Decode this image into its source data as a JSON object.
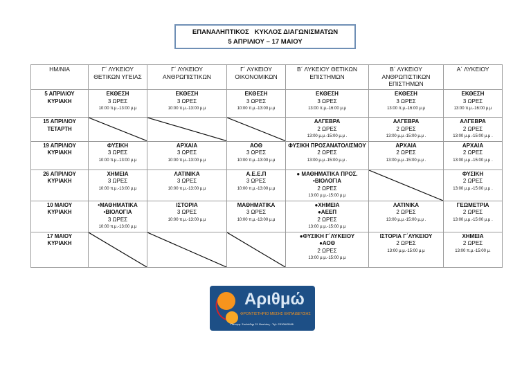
{
  "title": {
    "line1": "ΕΠΑΝΑΛΗΠΤΙΚΟΣ   ΚΥΚΛΟΣ ΔΙΑΓΩΝΙΣΜΑΤΩΝ",
    "line2": "5 ΑΠΡΙΛΙΟΥ – 17 ΜΑΙΟΥ"
  },
  "headers": [
    "ΗΜ/ΝΙΑ",
    "Γ΄ ΛΥΚΕΙΟΥ ΘΕΤΙΚΩΝ ΥΓΕΙΑΣ",
    "Γ΄ ΛΥΚΕΙΟΥ ΑΝΘΡΩΠΙΣΤΙΚΩΝ",
    "Γ΄ ΛΥΚΕΙΟΥ ΟΙΚΟΝΟΜΙΚΩΝ",
    "Β΄ ΛΥΚΕΙΟΥ ΘΕΤΙΚΩΝ ΕΠΙΣΤΗΜΩΝ",
    "Β΄ ΛΥΚΕΙΟΥ ΑΝΘΡΩΠΙΣΤΙΚΩΝ ΕΠΙΣΤΗΜΩΝ",
    "Α΄ ΛΥΚΕΙΟΥ"
  ],
  "rows": [
    {
      "date": "5 ΑΠΡΙΛΙΟΥ",
      "day": "ΚΥΡΙΑΚΗ",
      "cells": [
        {
          "subj": "ΕΚΘΕΣΗ",
          "hours": "3 ΩΡΕΣ",
          "time": "10:00 π.μ.-13:00 μ.μ"
        },
        {
          "subj": "ΕΚΘΕΣΗ",
          "hours": "3 ΩΡΕΣ",
          "time": "10:00 π.μ.-13:00 μ.μ"
        },
        {
          "subj": "ΕΚΘΕΣΗ",
          "hours": "3 ΩΡΕΣ",
          "time": "10:00 π.μ.-13:00 μ.μ"
        },
        {
          "subj": "ΕΚΘΕΣΗ",
          "hours": "3 ΩΡΕΣ",
          "time": "13:00 π.μ.-16:00 μ.μ"
        },
        {
          "subj": "ΕΚΘΕΣΗ",
          "hours": "3 ΩΡΕΣ",
          "time": "13:00 π.μ.-16:00 μ.μ"
        },
        {
          "subj": "ΕΚΘΕΣΗ",
          "hours": "3 ΩΡΕΣ",
          "time": "13:00 π.μ.-16:00 μ.μ"
        }
      ]
    },
    {
      "date": "15 ΑΠΡΙΛΙΟΥ",
      "day": "ΤΕΤΑΡΤΗ",
      "cells": [
        null,
        null,
        null,
        {
          "subj": "ΑΛΓΕΒΡΑ",
          "hours": "2 ΩΡΕΣ",
          "time": "13:00 μ.μ.-15:00 μ.μ ."
        },
        {
          "subj": "ΑΛΓΕΒΡΑ",
          "hours": "2 ΩΡΕΣ",
          "time": "13:00 μ.μ.-15:00 μ.μ ."
        },
        {
          "subj": "ΑΛΓΕΒΡΑ",
          "hours": "2 ΩΡΕΣ",
          "time": "13:00 μ.μ.-15:00 μ.μ ."
        }
      ]
    },
    {
      "date": "19 ΑΠΡΙΛΙΟΥ",
      "day": "ΚΥΡΙΑΚΗ",
      "cells": [
        {
          "subj": "ΦΥΣΙΚΗ",
          "hours": "3 ΩΡΕΣ",
          "time": "10:00 π.μ.-13:00 μ.μ"
        },
        {
          "subj": "ΑΡΧΑΙΑ",
          "hours": "3 ΩΡΕΣ",
          "time": "10:00 π.μ.-13:00 μ.μ"
        },
        {
          "subj": "ΑΟΘ",
          "hours": "3 ΩΡΕΣ",
          "time": "10:00 π.μ.-13:00 μ.μ"
        },
        {
          "subj": "ΦΥΣΙΚΗ ΠΡΟΣΑΝΑΤΟΛΙΣΜΟΥ",
          "hours": "2 ΩΡΕΣ",
          "time": "13:00 μ.μ.-15:00 μ.μ ."
        },
        {
          "subj": "ΑΡΧΑΙΑ",
          "hours": "2 ΩΡΕΣ",
          "time": "13:00 μ.μ.-15:00 μ.μ ."
        },
        {
          "subj": "ΑΡΧΑΙΑ",
          "hours": "2 ΩΡΕΣ",
          "time": "13:00 μ.μ.-15:00 μ.μ ."
        }
      ]
    },
    {
      "date": "26 ΑΠΡΙΛΙΟΥ",
      "day": "ΚΥΡΙΑΚΗ",
      "cells": [
        {
          "subj": "ΧΗΜΕΙΑ",
          "hours": "3 ΩΡΕΣ",
          "time": "10:00 π.μ.-13:00 μ.μ"
        },
        {
          "subj": "ΛΑΤΙΝΙΚΑ",
          "hours": "3 ΩΡΕΣ",
          "time": "10:00 π.μ.-13:00 μ.μ"
        },
        {
          "subj": "Α.Ε.Ε.Π",
          "hours": "3 ΩΡΕΣ",
          "time": "10:00 π.μ.-13:00 μ.μ"
        },
        {
          "subj": "● ΜΑΘΗΜΑΤΙΚΑ ΠΡΟΣ.",
          "subj2": "•ΒΙΟΛΟΓΙΑ",
          "hours": "2 ΩΡΕΣ",
          "time": "13:00 μ.μ.-15:00 μ.μ"
        },
        null,
        {
          "subj": "ΦΥΣΙΚΗ",
          "hours": "2 ΩΡΕΣ",
          "time": "13:00 μ.μ.-15:00 μ.μ ."
        }
      ]
    },
    {
      "date": "10 ΜΑΙΟΥ",
      "day": "ΚΥΡΙΑΚΗ",
      "cells": [
        {
          "subj": "•ΜΑΘΗΜΑΤΙΚΑ",
          "subj2": "•ΒΙΟΛΟΓΙΑ",
          "hours": "3 ΩΡΕΣ",
          "time": "10:00 π.μ.-13:00 μ.μ"
        },
        {
          "subj": "ΙΣΤΟΡΙΑ",
          "hours": "3 ΩΡΕΣ",
          "time": "10:00 π.μ.-13:00 μ.μ"
        },
        {
          "subj": "ΜΑΘΗΜΑΤΙΚΑ",
          "hours": "3 ΩΡΕΣ",
          "time": "10:00 π.μ.-13:00 μ.μ"
        },
        {
          "subj": "●ΧΗΜΕΙΑ",
          "subj2": "●ΑΕΕΠ",
          "hours": "2 ΩΡΕΣ",
          "time": "13:00 μ.μ.-15:00 μ.μ"
        },
        {
          "subj": "ΛΑΤΙΝΙΚΑ",
          "hours": "2 ΩΡΕΣ",
          "time": "13:00 μ.μ.-15:00 μ.μ ."
        },
        {
          "subj": "ΓΕΩΜΕΤΡΙΑ",
          "hours": "2 ΩΡΕΣ",
          "time": "13:00 μ.μ.-15:00 μ.μ ."
        }
      ]
    },
    {
      "date": "17 ΜΑΙΟΥ",
      "day": "ΚΥΡΙΑΚΗ",
      "cells": [
        null,
        null,
        null,
        {
          "subj": "●ΦΥΣΙΚΗ Γ΄ΛΥΚΕΙΟΥ",
          "subj2": "●ΑΟΘ",
          "hours": "2 ΩΡΕΣ",
          "time": "13:00 μ.μ.-15:00 μ.μ"
        },
        {
          "subj": "ΙΣΤΟΡΙΑ Γ΄ΛΥΚΕΙΟΥ",
          "hours": "2 ΩΡΕΣ",
          "time": "13:00 μ.μ.-15:00 μ.μ"
        },
        {
          "subj": "ΧΗΜΕΙΑ",
          "hours": "2 ΩΡΕΣ",
          "time": "13:00 π.μ.-15:00 μ."
        }
      ]
    }
  ],
  "logo": {
    "name": "Αριθμώ",
    "tagline": "ΦΡΟΝΤΙΣΤΗΡΙΟ ΜΕΣΗΣ ΕΚΠΑΙΔΕΥΣΗΣ",
    "address": "Πανορμ. Στυλιάδηρ 21 Θεσ/νίκη - Τηλ: 2310843186"
  },
  "colors": {
    "title_border": "#6f8fb5",
    "logo_bg": "#1d4f86",
    "logo_orange": "#f7941d"
  }
}
